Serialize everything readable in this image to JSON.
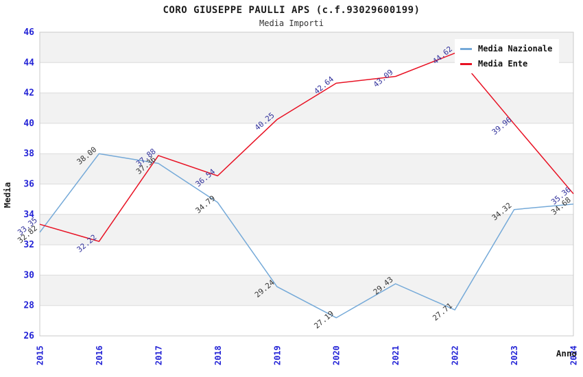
{
  "chart_data": {
    "type": "line",
    "title": "CORO GIUSEPPE PAULLI APS (c.f.93029600199)",
    "subtitle": "Media Importi",
    "xlabel": "Anno",
    "ylabel": "Media",
    "categories": [
      "2015",
      "2016",
      "2017",
      "2018",
      "2019",
      "2020",
      "2021",
      "2022",
      "2023",
      "2024"
    ],
    "ylim": [
      26,
      46
    ],
    "ytick_step": 2,
    "grid": "horizontal-bands",
    "legend_position": "top-right",
    "series": [
      {
        "name": "Media Nazionale",
        "color": "#74a9d8",
        "label_color": "#333333",
        "values": [
          32.82,
          38.0,
          37.36,
          34.79,
          29.24,
          27.19,
          29.43,
          27.71,
          34.32,
          34.68
        ],
        "labels": [
          "32.82",
          "38.00",
          "37.36",
          "34.79",
          "29.24",
          "27.19",
          "29.43",
          "27.71",
          "34.32",
          "34.68"
        ]
      },
      {
        "name": "Media Ente",
        "color": "#e81123",
        "label_color": "#31319c",
        "values": [
          33.35,
          32.22,
          37.88,
          36.54,
          40.25,
          42.64,
          43.09,
          44.62,
          39.96,
          35.36
        ],
        "labels": [
          "33.35",
          "32.22",
          "37.88",
          "36.54",
          "40.25",
          "42.64",
          "43.09",
          "44.62",
          "39.96",
          "35.36"
        ]
      }
    ],
    "colors": {
      "tick_label": "#2424d6",
      "band_gray": "#f2f2f2",
      "grid_line": "#dcdcdc",
      "plot_border": "#c9c9c9",
      "axis_title": "#1a1a1a"
    }
  }
}
